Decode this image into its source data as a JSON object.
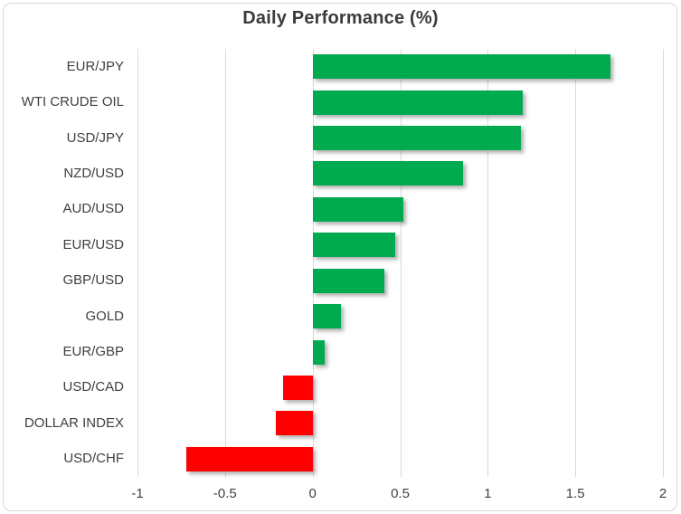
{
  "chart": {
    "title": "Daily Performance (%)"
  },
  "chart_data": {
    "type": "bar",
    "orientation": "horizontal",
    "title": "Daily Performance (%)",
    "categories": [
      "EUR/JPY",
      "WTI CRUDE OIL",
      "USD/JPY",
      "NZD/USD",
      "AUD/USD",
      "EUR/USD",
      "GBP/USD",
      "GOLD",
      "EUR/GBP",
      "USD/CAD",
      "DOLLAR INDEX",
      "USD/CHF"
    ],
    "values": [
      1.7,
      1.2,
      1.19,
      0.86,
      0.52,
      0.47,
      0.41,
      0.16,
      0.07,
      -0.17,
      -0.21,
      -0.72
    ],
    "xlabel": "",
    "ylabel": "",
    "xlim": [
      -1,
      2
    ],
    "xtick_step": 0.5,
    "xtick_labels": [
      "-1",
      "-0.5",
      "0",
      "0.5",
      "1",
      "1.5",
      "2"
    ],
    "grid": true,
    "legend": false,
    "colors": {
      "positive": "#00AB4F",
      "negative": "#FF0000",
      "gridline": "#D9D9D9",
      "border": "#D9D9D9",
      "text": "#3F3F3F"
    }
  }
}
